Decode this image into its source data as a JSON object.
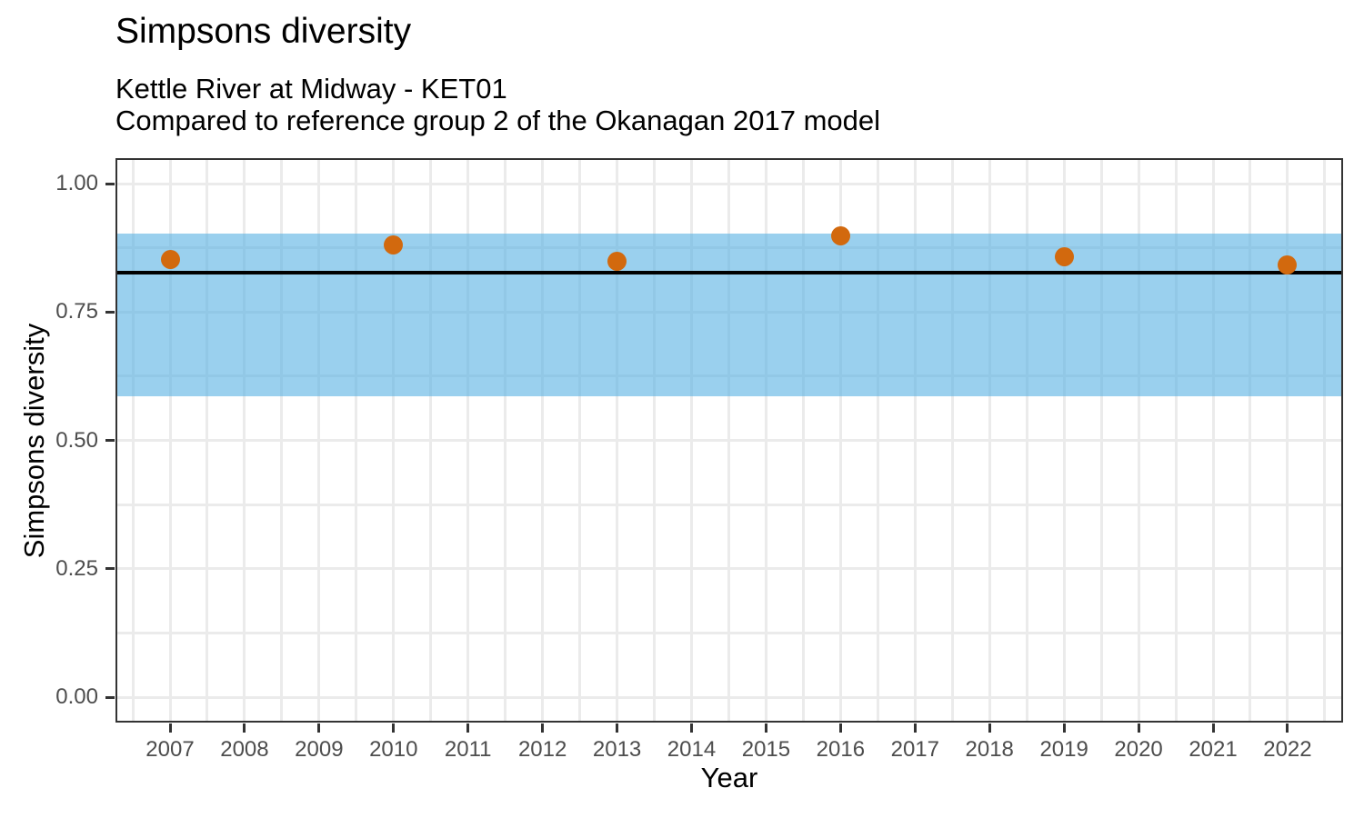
{
  "colors": {
    "point": "#D2690E",
    "band_fill": "rgba(86,177,226,0.6)",
    "reference_line": "#000000",
    "grid": "#EBEBEB",
    "panel_border": "#333333",
    "tick_mark": "#333333",
    "tick_label": "#4D4D4D",
    "text": "#000000",
    "background": "#FFFFFF"
  },
  "chart_data": {
    "type": "scatter",
    "title": "Simpsons diversity",
    "subtitle_lines": [
      "Kettle River at Midway - KET01",
      "Compared to reference group 2 of the Okanagan 2017 model"
    ],
    "xlabel": "Year",
    "ylabel": "Simpsons diversity",
    "x_tick_years": [
      2007,
      2008,
      2009,
      2010,
      2011,
      2012,
      2013,
      2014,
      2015,
      2016,
      2017,
      2018,
      2019,
      2020,
      2021,
      2022
    ],
    "y_ticks": [
      {
        "value": 0.0,
        "label": "0.00"
      },
      {
        "value": 0.25,
        "label": "0.25"
      },
      {
        "value": 0.5,
        "label": "0.50"
      },
      {
        "value": 0.75,
        "label": "0.75"
      },
      {
        "value": 1.0,
        "label": "1.00"
      }
    ],
    "y_minor_ticks": [
      0.125,
      0.375,
      0.625,
      0.875
    ],
    "xlim": [
      2006.25,
      2022.75
    ],
    "ylim": [
      -0.05,
      1.05
    ],
    "grid": "major-and-minor",
    "legend_position": "none",
    "points": [
      {
        "year": 2007,
        "value": 0.852
      },
      {
        "year": 2010,
        "value": 0.881
      },
      {
        "year": 2013,
        "value": 0.848
      },
      {
        "year": 2016,
        "value": 0.899
      },
      {
        "year": 2019,
        "value": 0.858
      },
      {
        "year": 2022,
        "value": 0.841
      }
    ],
    "reference_band": {
      "lower": 0.585,
      "upper": 0.903
    },
    "reference_line": {
      "value": 0.827
    }
  }
}
